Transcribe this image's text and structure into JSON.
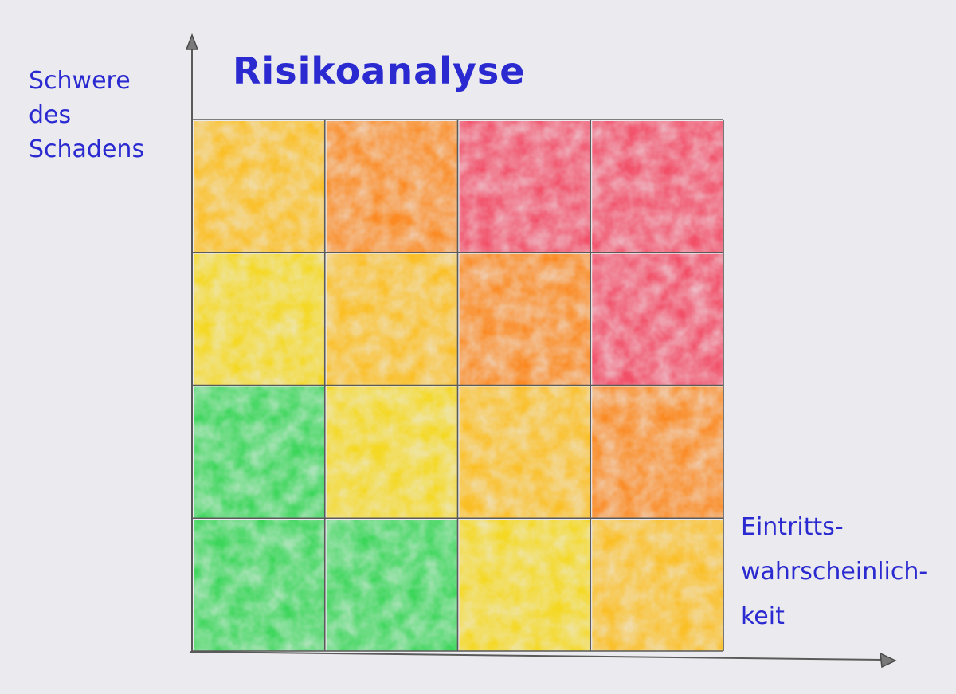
{
  "title": "Risikoanalyse",
  "y_axis": {
    "lines": [
      "Schwere",
      "des",
      "Schadens"
    ]
  },
  "x_axis": {
    "lines": [
      "Eintritts-",
      "wahrscheinlich-",
      "keit"
    ]
  },
  "matrix": {
    "rows": 4,
    "cols": 4,
    "row_order": "top-to-bottom",
    "levels": [
      [
        "yellow-orange",
        "orange",
        "red",
        "red"
      ],
      [
        "yellow",
        "yellow-orange",
        "orange",
        "red"
      ],
      [
        "green",
        "yellow",
        "yellow-orange",
        "orange"
      ],
      [
        "green",
        "green",
        "yellow",
        "yellow-orange"
      ]
    ]
  },
  "colors": {
    "ink": "#2a2ad0",
    "paper": "#ebebef",
    "grid": "#5a5a5a",
    "green": "#3cd65a",
    "yellow": "#f5d820",
    "yellow-orange": "#fbbf25",
    "orange": "#fb8a22",
    "red": "#f24f68"
  }
}
